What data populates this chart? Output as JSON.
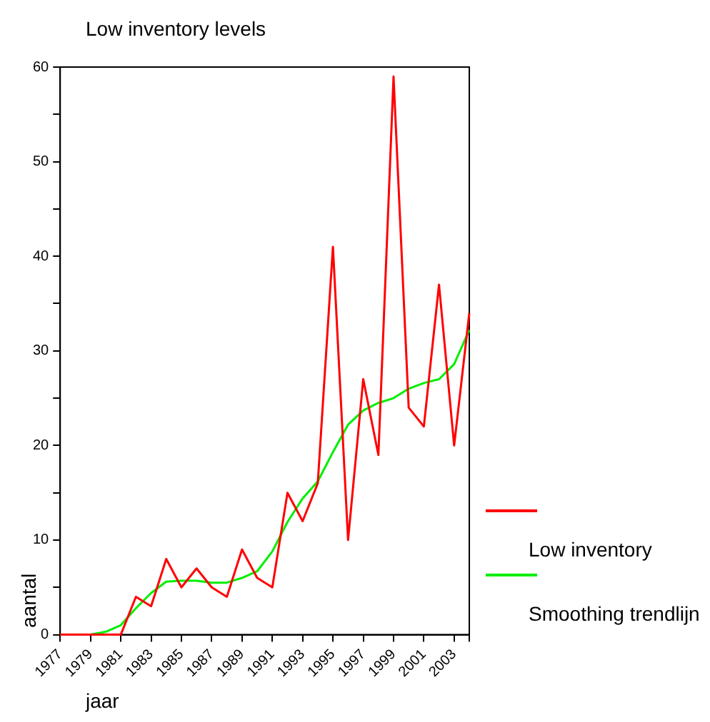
{
  "chart_data": {
    "type": "line",
    "title": "Low inventory levels",
    "xlabel": "jaar",
    "ylabel": "aantal",
    "x": [
      1977,
      1978,
      1979,
      1980,
      1981,
      1982,
      1983,
      1984,
      1985,
      1986,
      1987,
      1988,
      1989,
      1990,
      1991,
      1992,
      1993,
      1994,
      1995,
      1996,
      1997,
      1998,
      1999,
      2000,
      2001,
      2002,
      2003,
      2004
    ],
    "series": [
      {
        "name": "Low inventory",
        "color": "#ff0000",
        "values": [
          0,
          0,
          0,
          0,
          0,
          4,
          3,
          8,
          5,
          7,
          5,
          4,
          9,
          6,
          5,
          15,
          12,
          16,
          41,
          10,
          27,
          19,
          59,
          24,
          22,
          37,
          20,
          34
        ]
      },
      {
        "name": "Smoothing trendlijn",
        "color": "#00ee00",
        "values": [
          0,
          0,
          0,
          0.3,
          1,
          2.8,
          4.4,
          5.6,
          5.7,
          5.7,
          5.5,
          5.5,
          6,
          6.7,
          8.8,
          11.9,
          14.4,
          16.2,
          19.3,
          22.2,
          23.7,
          24.5,
          25,
          26,
          26.6,
          27,
          28.6,
          32.2
        ]
      }
    ],
    "xlim": [
      1977,
      2004
    ],
    "xticks": [
      1977,
      1979,
      1981,
      1983,
      1985,
      1987,
      1989,
      1991,
      1993,
      1995,
      1997,
      1999,
      2001,
      2003,
      {
        "value": 2004,
        "label": null
      }
    ],
    "ylim": [
      0,
      60
    ],
    "yticks": [
      0,
      {
        "value": 5,
        "label": null
      },
      10,
      {
        "value": 15,
        "label": null
      },
      20,
      {
        "value": 25,
        "label": null
      },
      30,
      {
        "value": 35,
        "label": null
      },
      40,
      {
        "value": 45,
        "label": null
      },
      50,
      {
        "value": 55,
        "label": null
      },
      60
    ],
    "grid": false,
    "legend": "right",
    "marker": "none",
    "line_style": "solid"
  }
}
